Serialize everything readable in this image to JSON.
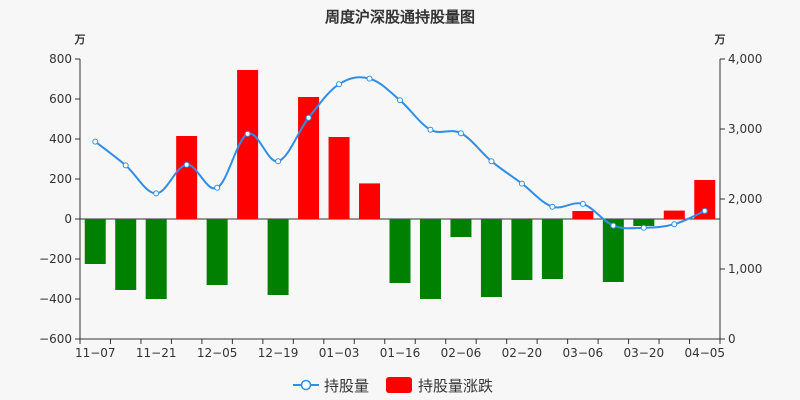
{
  "chart_data": {
    "type": "bar+line",
    "title": "周度沪深股通持股量图",
    "left_unit": "万",
    "right_unit": "万",
    "left_ylim": [
      -600,
      800
    ],
    "left_ticks": [
      "800",
      "600",
      "400",
      "200",
      "0",
      "−200",
      "−400",
      "−600"
    ],
    "left_tick_values": [
      800,
      600,
      400,
      200,
      0,
      -200,
      -400,
      -600
    ],
    "right_ylim": [
      0,
      4000
    ],
    "right_ticks": [
      "4,000",
      "3,000",
      "2,000",
      "1,000",
      "0"
    ],
    "right_tick_values": [
      4000,
      3000,
      2000,
      1000,
      0
    ],
    "x_tick_labels": [
      "11−07",
      "11−21",
      "12−05",
      "12−19",
      "01−03",
      "01−16",
      "02−06",
      "02−20",
      "03−06",
      "03−20",
      "04−05"
    ],
    "x_tick_indices": [
      0,
      2,
      4,
      6,
      8,
      10,
      12,
      14,
      16,
      18,
      20
    ],
    "bar_series": {
      "name": "持股量涨跌",
      "values": [
        -225,
        -355,
        -400,
        415,
        -330,
        745,
        -380,
        610,
        410,
        178,
        -320,
        -400,
        -90,
        -390,
        -305,
        -300,
        40,
        -315,
        -35,
        42,
        195
      ],
      "positive_color": "#ff0000",
      "negative_color": "#008000"
    },
    "line_series": {
      "name": "持股量",
      "values": [
        2820,
        2480,
        2080,
        2490,
        2160,
        2930,
        2540,
        3160,
        3640,
        3720,
        3410,
        2990,
        2940,
        2540,
        2220,
        1890,
        1930,
        1620,
        1590,
        1640,
        1830
      ],
      "color": "#2f8fe8"
    },
    "grid": false,
    "legend_position": "bottom-center"
  }
}
